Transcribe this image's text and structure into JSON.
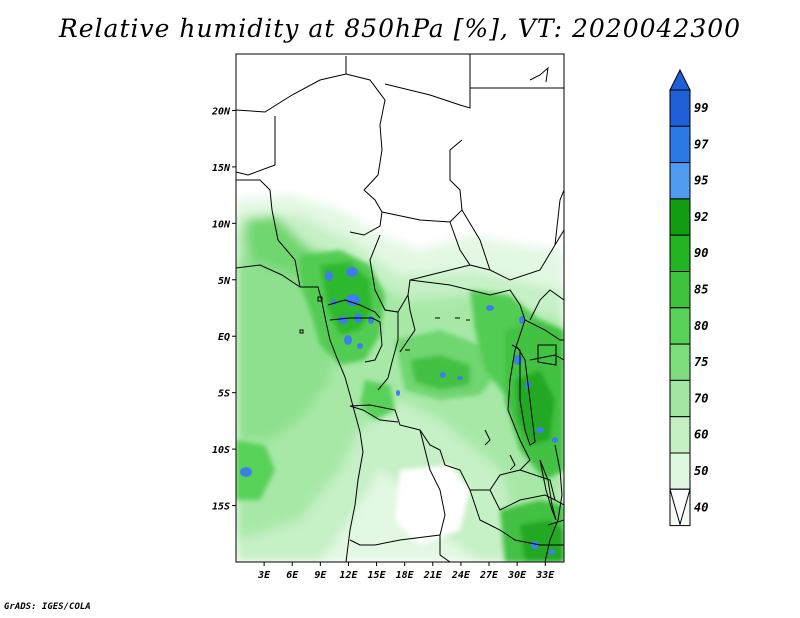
{
  "title": "Relative humidity at 850hPa [%], VT: 2020042300",
  "footer": "GrADS: IGES/COLA",
  "map": {
    "lon_labels": [
      "3E",
      "6E",
      "9E",
      "12E",
      "15E",
      "18E",
      "21E",
      "24E",
      "27E",
      "30E",
      "33E"
    ],
    "lat_labels": [
      "20N",
      "15N",
      "10N",
      "5N",
      "EQ",
      "5S",
      "10S",
      "15S"
    ],
    "lon_values": [
      3,
      6,
      9,
      12,
      15,
      18,
      21,
      24,
      27,
      30,
      33
    ],
    "lat_values": [
      20,
      15,
      10,
      5,
      0,
      -5,
      -10,
      -15
    ],
    "lon_range": [
      0,
      35
    ],
    "lat_range": [
      -20,
      25
    ]
  },
  "colorbar": {
    "labels": [
      "99",
      "97",
      "95",
      "92",
      "90",
      "85",
      "80",
      "75",
      "70",
      "60",
      "50",
      "40"
    ],
    "colors": [
      "#1e5fd8",
      "#2a7ae6",
      "#4f9cf0",
      "#129c12",
      "#23b423",
      "#3ec33e",
      "#58d158",
      "#7ddd7d",
      "#a2e6a2",
      "#c3efc3",
      "#def7de",
      "#f4fdf4"
    ]
  }
}
